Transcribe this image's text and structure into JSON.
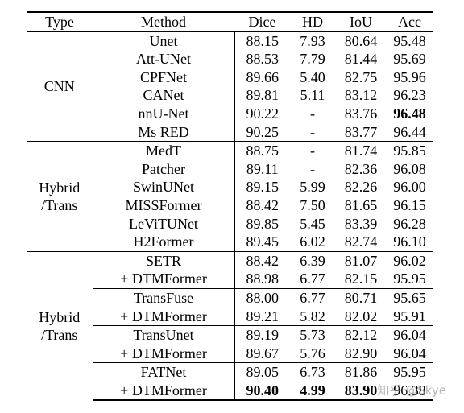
{
  "header": [
    "Type",
    "Method",
    "Dice",
    "HD",
    "IoU",
    "Acc"
  ],
  "groups": [
    {
      "type": "CNN",
      "rows": [
        {
          "method": "Unet",
          "dice": "88.15",
          "hd": "7.93",
          "iou": "80.64",
          "acc": "95.48"
        },
        {
          "method": "Att-UNet",
          "dice": "88.53",
          "hd": "7.79",
          "iou": "81.44",
          "acc": "95.69"
        },
        {
          "method": "CPFNet",
          "dice": "89.66",
          "hd": "5.40",
          "iou": "82.75",
          "acc": "95.96"
        },
        {
          "method": "CANet",
          "dice": "89.81",
          "hd": "5.11",
          "iou": "83.12",
          "acc": "96.23"
        },
        {
          "method": "nnU-Net",
          "dice": "90.22",
          "hd": "-",
          "iou": "83.76",
          "acc": "96.48"
        },
        {
          "method": "Ms RED",
          "dice": "90.25",
          "hd": "-",
          "iou": "83.77",
          "acc": "96.44"
        }
      ]
    },
    {
      "type": "Hybrid /Trans",
      "rows": [
        {
          "method": "MedT",
          "dice": "88.75",
          "hd": "-",
          "iou": "81.74",
          "acc": "95.85"
        },
        {
          "method": "Patcher",
          "dice": "89.11",
          "hd": "-",
          "iou": "82.36",
          "acc": "96.08"
        },
        {
          "method": "SwinUNet",
          "dice": "89.15",
          "hd": "5.99",
          "iou": "82.26",
          "acc": "96.00"
        },
        {
          "method": "MISSFormer",
          "dice": "88.42",
          "hd": "7.50",
          "iou": "81.65",
          "acc": "96.15"
        },
        {
          "method": "LeViTUNet",
          "dice": "89.85",
          "hd": "5.45",
          "iou": "83.39",
          "acc": "96.28"
        },
        {
          "method": "H2Former",
          "dice": "89.45",
          "hd": "6.02",
          "iou": "82.74",
          "acc": "96.10"
        }
      ]
    },
    {
      "type": "Hybrid /Trans",
      "rows": [
        {
          "method": "SETR",
          "dice": "88.42",
          "hd": "6.39",
          "iou": "81.07",
          "acc": "96.02"
        },
        {
          "method": "+ DTMFormer",
          "dice": "88.98",
          "hd": "6.77",
          "iou": "82.15",
          "acc": "95.95"
        },
        {
          "method": "TransFuse",
          "dice": "88.00",
          "hd": "6.77",
          "iou": "80.71",
          "acc": "95.65"
        },
        {
          "method": "+ DTMFormer",
          "dice": "89.21",
          "hd": "5.82",
          "iou": "82.02",
          "acc": "95.91"
        },
        {
          "method": "TransUnet",
          "dice": "89.19",
          "hd": "5.73",
          "iou": "82.12",
          "acc": "96.04"
        },
        {
          "method": "+ DTMFormer",
          "dice": "89.67",
          "hd": "5.76",
          "iou": "82.90",
          "acc": "96.04"
        },
        {
          "method": "FATNet",
          "dice": "89.05",
          "hd": "6.73",
          "iou": "81.86",
          "acc": "95.95"
        },
        {
          "method": "+ DTMFormer",
          "dice": "90.40",
          "hd": "4.99",
          "iou": "83.90",
          "acc": "96.38"
        }
      ]
    }
  ],
  "watermark": "知乎 @Skye"
}
